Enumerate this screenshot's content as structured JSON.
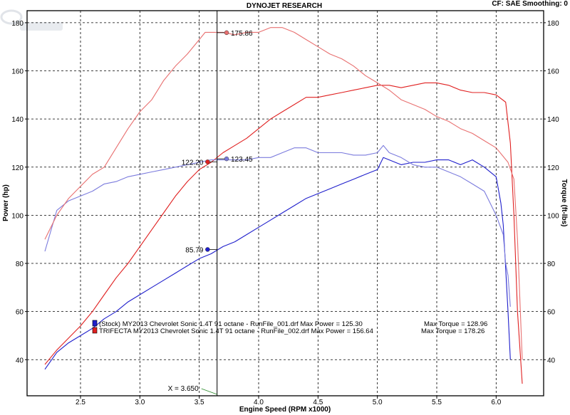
{
  "header": {
    "title": "DYNOJET RESEARCH",
    "right_info": "CF: SAE  Smoothing: 0"
  },
  "chart_data": {
    "type": "line",
    "xlabel": "Engine Speed (RPM x1000)",
    "ylabel_left": "Power (hp)",
    "ylabel_right": "Torque (ft-lbs)",
    "xlim": [
      2.05,
      6.4
    ],
    "ylim_left": [
      25,
      185
    ],
    "ylim_right": [
      25,
      185
    ],
    "x_ticks": [
      2.5,
      3.0,
      3.5,
      4.0,
      4.5,
      5.0,
      5.5,
      6.0
    ],
    "x_tick_labels": [
      "2.5",
      "3.0",
      "3.5",
      "4.0",
      "4.5",
      "5.0",
      "5.5",
      "6.0"
    ],
    "y_ticks": [
      40,
      60,
      80,
      100,
      120,
      140,
      160,
      180
    ],
    "y_tick_labels": [
      "40",
      "60",
      "80",
      "100",
      "120",
      "140",
      "160",
      "180"
    ],
    "grid": true,
    "legend": [
      {
        "label": "(Stock) MY2013 Chevrolet Sonic 1.4T 91 octane - RunFile_001.drf Max Power = 125.30",
        "torque_label": "Max Torque = 128.96",
        "color": "#1f1fcc"
      },
      {
        "label": "TRIFECTA MY2013 Chevrolet Sonic 1.4T 91 octane - RunFile_002.drf Max Power = 156.64",
        "torque_label": "Max Torque = 178.26",
        "color": "#e02020"
      }
    ],
    "cursor": {
      "x": 3.65,
      "label": "X = 3.650"
    },
    "markers": [
      {
        "x": 3.57,
        "y": 85.79,
        "label": "85.79",
        "color": "#1f1fcc",
        "side": "left"
      },
      {
        "x": 3.57,
        "y": 122.2,
        "label": "122.20",
        "color": "#e02020",
        "side": "left"
      },
      {
        "x": 3.73,
        "y": 123.45,
        "label": "123.45",
        "color": "#7b7bdd",
        "side": "right"
      },
      {
        "x": 3.73,
        "y": 175.86,
        "label": "175.86",
        "color": "#e87070",
        "side": "right"
      }
    ],
    "series": [
      {
        "name": "Stock Power (hp)",
        "color": "#1f1fcc",
        "x": [
          2.2,
          2.3,
          2.4,
          2.5,
          2.6,
          2.7,
          2.8,
          2.9,
          3.0,
          3.1,
          3.2,
          3.3,
          3.4,
          3.5,
          3.6,
          3.7,
          3.8,
          3.9,
          4.0,
          4.1,
          4.2,
          4.3,
          4.4,
          4.5,
          4.6,
          4.7,
          4.8,
          4.9,
          5.0,
          5.05,
          5.1,
          5.2,
          5.3,
          5.4,
          5.5,
          5.6,
          5.7,
          5.8,
          5.9,
          6.0,
          6.04,
          6.06,
          6.08,
          6.1,
          6.12
        ],
        "y": [
          36,
          43,
          47,
          50,
          53,
          57,
          60,
          64,
          67,
          70,
          73,
          76,
          79,
          82,
          84,
          87,
          89,
          92,
          95,
          98,
          101,
          104,
          107,
          109,
          111,
          113,
          115,
          117,
          119,
          124,
          123,
          121,
          122,
          122,
          123,
          123,
          121,
          123,
          120,
          116,
          105,
          96,
          78,
          60,
          40
        ]
      },
      {
        "name": "Trifecta Power (hp)",
        "color": "#e02020",
        "x": [
          2.2,
          2.3,
          2.4,
          2.5,
          2.6,
          2.7,
          2.8,
          2.9,
          3.0,
          3.1,
          3.2,
          3.3,
          3.4,
          3.5,
          3.6,
          3.7,
          3.8,
          3.9,
          4.0,
          4.1,
          4.2,
          4.3,
          4.4,
          4.5,
          4.6,
          4.7,
          4.8,
          4.9,
          5.0,
          5.1,
          5.2,
          5.3,
          5.4,
          5.5,
          5.6,
          5.7,
          5.8,
          5.9,
          6.0,
          6.08,
          6.12,
          6.15,
          6.18,
          6.22
        ],
        "y": [
          38,
          44,
          49,
          54,
          60,
          67,
          74,
          80,
          87,
          94,
          101,
          108,
          114,
          119,
          122,
          126,
          129,
          132,
          136,
          140,
          143,
          146,
          149,
          149,
          150,
          151,
          152,
          153,
          154,
          154,
          153,
          154,
          155,
          155,
          154,
          152,
          151,
          151,
          150,
          147,
          130,
          100,
          60,
          30
        ]
      },
      {
        "name": "Stock Torque (ft-lbs)",
        "color": "#7b7bdd",
        "x": [
          2.2,
          2.3,
          2.4,
          2.5,
          2.6,
          2.7,
          2.8,
          2.9,
          3.0,
          3.1,
          3.2,
          3.3,
          3.4,
          3.5,
          3.6,
          3.7,
          3.8,
          3.9,
          4.0,
          4.1,
          4.2,
          4.3,
          4.4,
          4.5,
          4.6,
          4.7,
          4.8,
          4.9,
          5.0,
          5.05,
          5.1,
          5.2,
          5.3,
          5.4,
          5.5,
          5.6,
          5.7,
          5.8,
          5.9,
          5.95,
          6.0,
          6.03,
          6.06,
          6.08,
          6.1,
          6.12
        ],
        "y": [
          85,
          102,
          106,
          108,
          110,
          113,
          114,
          116,
          117,
          118,
          119,
          120,
          121,
          122,
          123,
          123,
          123,
          123,
          124,
          124,
          126,
          128,
          128,
          126,
          126,
          126,
          125,
          125,
          126,
          129,
          126,
          124,
          121,
          120,
          120,
          118,
          116,
          113,
          110,
          105,
          100,
          96,
          92,
          80,
          75,
          62
        ]
      },
      {
        "name": "Trifecta Torque (ft-lbs)",
        "color": "#e87070",
        "x": [
          2.2,
          2.3,
          2.4,
          2.5,
          2.6,
          2.7,
          2.8,
          2.9,
          3.0,
          3.1,
          3.2,
          3.3,
          3.4,
          3.5,
          3.55,
          3.6,
          3.7,
          3.8,
          3.9,
          4.0,
          4.1,
          4.2,
          4.3,
          4.4,
          4.5,
          4.6,
          4.7,
          4.8,
          4.9,
          5.0,
          5.1,
          5.2,
          5.3,
          5.4,
          5.5,
          5.6,
          5.7,
          5.8,
          5.9,
          6.0,
          6.05,
          6.1,
          6.15,
          6.18,
          6.22
        ],
        "y": [
          90,
          100,
          107,
          112,
          117,
          120,
          128,
          136,
          143,
          148,
          156,
          162,
          167,
          173,
          176,
          176,
          176,
          175,
          176,
          176,
          178,
          178,
          176,
          173,
          170,
          167,
          165,
          162,
          158,
          155,
          152,
          148,
          146,
          144,
          141,
          139,
          136,
          134,
          131,
          128,
          125,
          122,
          115,
          90,
          40
        ]
      }
    ]
  }
}
